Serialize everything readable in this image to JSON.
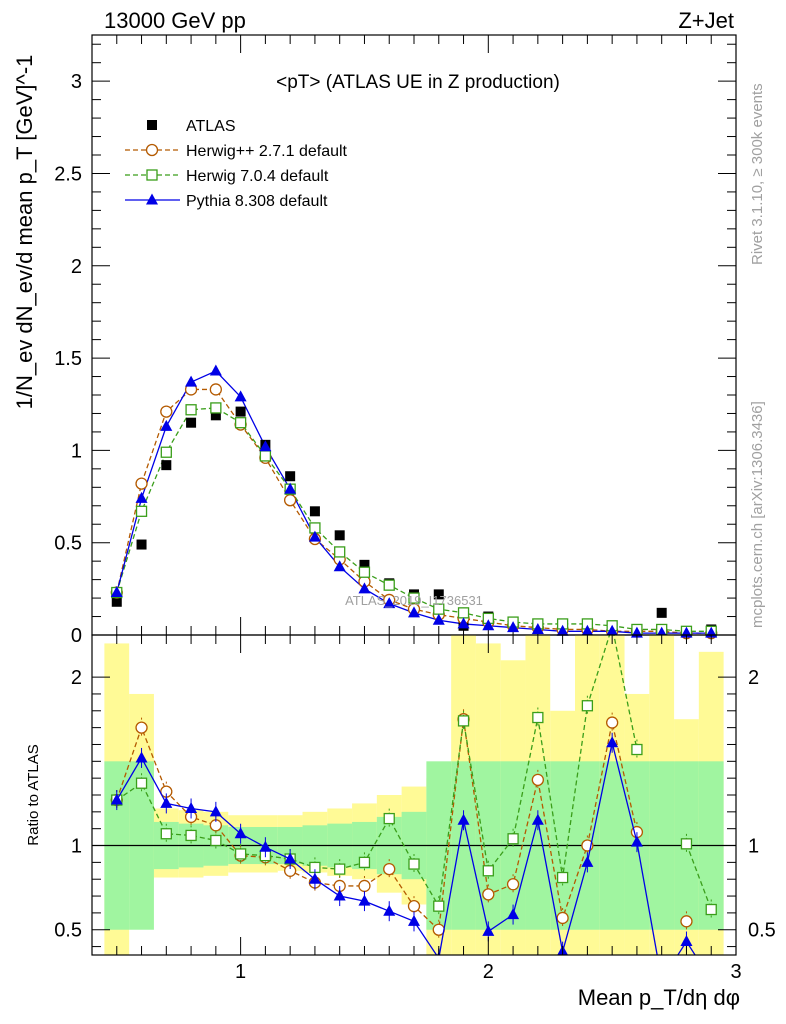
{
  "header": {
    "left": "13000 GeV pp",
    "right": "Z+Jet"
  },
  "side_texts": {
    "rivet": "Rivet 3.1.10, ≥ 300k events",
    "mcplots": "mcplots.cern.ch [arXiv:1306.3436]"
  },
  "watermark": "ATLAS_2019_I1736531",
  "chart_data": [
    {
      "type": "scatter",
      "title": "<pT> (ATLAS UE in Z production)",
      "ylabel": "1/N_ev dN_ev/d mean p_T [GeV]^-1",
      "xlim": [
        0.4,
        3.0
      ],
      "ylim": [
        0,
        3.25
      ],
      "xticks": [
        1,
        2,
        3
      ],
      "yticks": [
        0,
        0.5,
        1,
        1.5,
        2,
        2.5,
        3
      ],
      "ytick_labels": [
        "0",
        "0.5",
        "1",
        "1.5",
        "2",
        "2.5",
        "3"
      ],
      "legend_position": "top-left",
      "x": [
        0.5,
        0.6,
        0.7,
        0.8,
        0.9,
        1.0,
        1.1,
        1.2,
        1.3,
        1.4,
        1.5,
        1.6,
        1.7,
        1.8,
        1.9,
        2.0,
        2.1,
        2.2,
        2.3,
        2.4,
        2.5,
        2.6,
        2.7,
        2.8,
        2.9
      ],
      "series": [
        {
          "name": "ATLAS",
          "color": "#000000",
          "marker": "square-filled",
          "values": [
            0.18,
            0.49,
            0.92,
            1.15,
            1.19,
            1.21,
            1.03,
            0.86,
            0.67,
            0.54,
            0.38,
            0.28,
            0.22,
            0.22,
            0.05,
            0.1,
            0.07,
            0.05,
            0.06,
            0.04,
            0.03,
            0.02,
            0.12,
            0.02,
            0.03
          ]
        },
        {
          "name": "Herwig++ 2.7.1 default",
          "color": "#b45a00",
          "marker": "circle-open",
          "dashed": true,
          "values": [
            0.23,
            0.82,
            1.21,
            1.33,
            1.33,
            1.14,
            0.96,
            0.73,
            0.52,
            0.41,
            0.29,
            0.19,
            0.14,
            0.11,
            0.09,
            0.07,
            0.05,
            0.04,
            0.03,
            0.03,
            0.02,
            0.02,
            0.02,
            0.01,
            0.01
          ]
        },
        {
          "name": "Herwig 7.0.4 default",
          "color": "#3a9e1a",
          "marker": "square-open",
          "dashed": true,
          "values": [
            0.23,
            0.67,
            0.99,
            1.22,
            1.23,
            1.15,
            0.97,
            0.79,
            0.58,
            0.45,
            0.34,
            0.27,
            0.2,
            0.14,
            0.12,
            0.09,
            0.07,
            0.06,
            0.06,
            0.06,
            0.05,
            0.03,
            0.03,
            0.02,
            0.02
          ]
        },
        {
          "name": "Pythia 8.308 default",
          "color": "#0000e6",
          "marker": "triangle-filled",
          "values": [
            0.23,
            0.74,
            1.13,
            1.37,
            1.43,
            1.29,
            1.02,
            0.79,
            0.53,
            0.37,
            0.25,
            0.17,
            0.12,
            0.08,
            0.06,
            0.05,
            0.04,
            0.03,
            0.02,
            0.02,
            0.02,
            0.01,
            0.01,
            0.01,
            0.01
          ]
        }
      ]
    },
    {
      "type": "line",
      "ylabel": "Ratio to ATLAS",
      "xlabel": "Mean p_T/dη dφ",
      "xlim": [
        0.4,
        3.0
      ],
      "ylim": [
        0.35,
        2.25
      ],
      "xticks": [
        1,
        2,
        3
      ],
      "yticks": [
        0.5,
        1,
        2
      ],
      "ytick_labels": [
        "0.5",
        "1",
        "2"
      ],
      "x": [
        0.5,
        0.6,
        0.7,
        0.8,
        0.9,
        1.0,
        1.1,
        1.2,
        1.3,
        1.4,
        1.5,
        1.6,
        1.7,
        1.8,
        1.9,
        2.0,
        2.1,
        2.2,
        2.3,
        2.4,
        2.5,
        2.6,
        2.7,
        2.8,
        2.9
      ],
      "band_inner": {
        "color": "#a0f5a0",
        "low": [
          0.5,
          0.5,
          0.86,
          0.87,
          0.88,
          0.89,
          0.89,
          0.89,
          0.88,
          0.87,
          0.86,
          0.83,
          0.8,
          0.5,
          0.5,
          0.5,
          0.5,
          0.5,
          0.5,
          0.5,
          0.5,
          0.5,
          0.5,
          0.5,
          0.5
        ],
        "high": [
          1.5,
          1.5,
          1.14,
          1.13,
          1.12,
          1.11,
          1.11,
          1.11,
          1.12,
          1.13,
          1.14,
          1.17,
          1.2,
          1.5,
          1.5,
          1.5,
          1.5,
          1.5,
          1.5,
          1.5,
          1.5,
          1.5,
          1.5,
          1.5,
          1.5
        ]
      },
      "band_outer": {
        "color": "#fffa96",
        "low": [
          0.35,
          0.8,
          0.81,
          0.81,
          0.82,
          0.84,
          0.84,
          0.85,
          0.84,
          0.82,
          0.8,
          0.72,
          0.65,
          0.35,
          0.35,
          0.35,
          0.35,
          0.35,
          0.35,
          0.35,
          0.35,
          0.35,
          0.35,
          0.35,
          0.35
        ],
        "high": [
          2.2,
          1.9,
          1.22,
          1.21,
          1.2,
          1.18,
          1.18,
          1.18,
          1.2,
          1.22,
          1.25,
          1.3,
          1.35,
          1.4,
          2.25,
          2.2,
          2.1,
          2.25,
          1.8,
          2.25,
          2.25,
          1.9,
          2.25,
          1.75,
          2.15
        ]
      },
      "reference_line": 1,
      "series": [
        {
          "name": "Herwig++ 2.7.1 default",
          "color": "#b45a00",
          "marker": "circle-open",
          "dashed": true,
          "values": [
            1.27,
            1.7,
            1.32,
            1.17,
            1.12,
            0.94,
            0.93,
            0.85,
            0.78,
            0.76,
            0.76,
            0.86,
            0.64,
            0.5,
            1.75,
            0.71,
            0.77,
            1.39,
            0.57,
            1.0,
            1.73,
            1.08,
            null,
            0.55,
            null
          ]
        },
        {
          "name": "Herwig 7.0.4 default",
          "color": "#3a9e1a",
          "marker": "square-open",
          "dashed": true,
          "values": [
            1.27,
            1.37,
            1.07,
            1.06,
            1.03,
            0.95,
            0.94,
            0.92,
            0.87,
            0.86,
            0.9,
            1.16,
            0.89,
            0.64,
            1.74,
            0.85,
            1.04,
            1.76,
            0.81,
            1.83,
            2.3,
            1.57,
            null,
            1.01,
            0.62
          ]
        },
        {
          "name": "Pythia 8.308 default",
          "color": "#0000e6",
          "marker": "triangle-filled",
          "values": [
            1.27,
            1.52,
            1.25,
            1.22,
            1.2,
            1.07,
            0.99,
            0.92,
            0.8,
            0.7,
            0.67,
            0.61,
            0.55,
            0.33,
            1.15,
            0.49,
            0.59,
            1.15,
            0.37,
            0.9,
            1.61,
            1.02,
            0.2,
            0.43,
            0.2
          ]
        }
      ]
    }
  ]
}
